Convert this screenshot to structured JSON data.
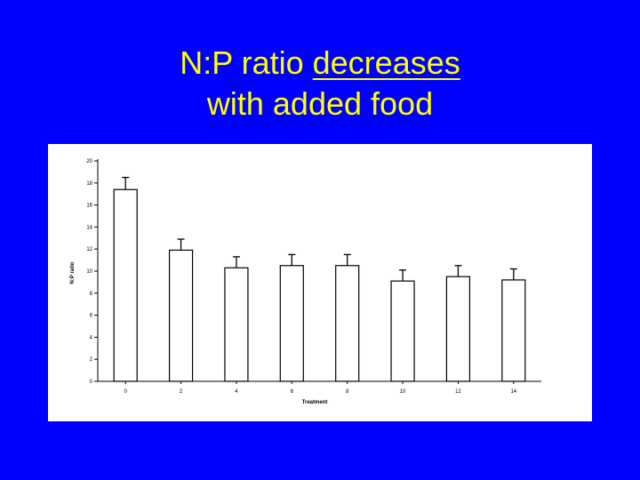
{
  "slide": {
    "title_line1_prefix": "N:P ratio ",
    "title_line1_emph": "decreases",
    "title_line2": "with added food"
  },
  "colors": {
    "background": "#0000FF",
    "title": "#FFFF00",
    "panel": "#FFFFFF",
    "bars": "#FFFFFF",
    "ink": "#000000"
  },
  "chart_data": {
    "type": "bar",
    "title": "",
    "xlabel": "Treatment",
    "ylabel": "N:P ratio",
    "categories": [
      "0",
      "2",
      "4",
      "6",
      "8",
      "10",
      "12",
      "14"
    ],
    "values": [
      17.4,
      11.9,
      10.3,
      10.5,
      10.5,
      9.1,
      9.5,
      9.2
    ],
    "errors": [
      1.1,
      1.0,
      1.0,
      1.0,
      1.0,
      1.0,
      1.0,
      1.0
    ],
    "ylim": [
      0,
      20
    ],
    "yticks": [
      "0",
      "2",
      "4",
      "6",
      "8",
      "10",
      "12",
      "14",
      "16",
      "18",
      "20"
    ],
    "grid": false,
    "legend": "none"
  }
}
